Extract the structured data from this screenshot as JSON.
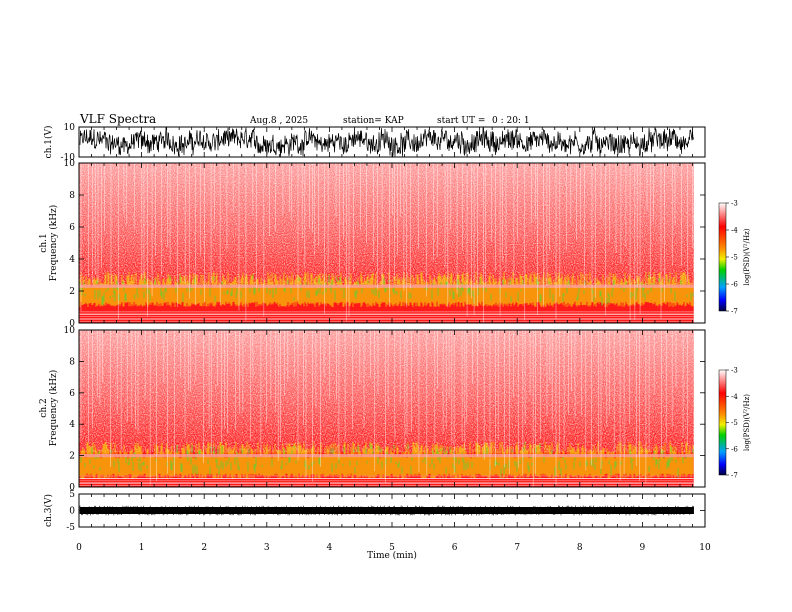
{
  "header": {
    "title": "VLF Spectra",
    "date": "Aug.8 , 2025",
    "station": "station= KAP",
    "start_label": "start  UT =",
    "start_time": "0 : 20: 1"
  },
  "chart_data": [
    {
      "type": "line",
      "name": "ch1-waveform",
      "ylabel": "ch.1(V)",
      "ylim": [
        -10,
        10
      ],
      "yticks": [
        "10",
        "-10"
      ],
      "xlim": [
        0,
        10
      ],
      "data_end_min": 9.82,
      "description_value": "broadband noise waveform, roughly -7 to 7 V"
    },
    {
      "type": "heatmap",
      "name": "ch1-spectrogram",
      "ylabel_line1": "ch.1",
      "ylabel_line2": "Frequency (kHz)",
      "ylim": [
        0,
        10
      ],
      "yticks": [
        "0",
        "2",
        "4",
        "6",
        "8",
        "10"
      ],
      "xlim": [
        0,
        10
      ],
      "colorbar": {
        "label": "log(PSD)(V²/Hz)",
        "range": [
          -7,
          -3
        ],
        "ticks": [
          "-3",
          "-4",
          "-5",
          "-6",
          "-7"
        ]
      },
      "bands_khz": [
        [
          1.0,
          3.2
        ],
        [
          2.2,
          2.4
        ]
      ]
    },
    {
      "type": "heatmap",
      "name": "ch2-spectrogram",
      "ylabel_line1": "ch.2",
      "ylabel_line2": "Frequency (kHz)",
      "ylim": [
        0,
        10
      ],
      "yticks": [
        "0",
        "2",
        "4",
        "6",
        "8",
        "10"
      ],
      "xlim": [
        0,
        10
      ],
      "colorbar": {
        "label": "log(PSD)(V²/Hz)",
        "range": [
          -7,
          -3
        ],
        "ticks": [
          "-3",
          "-4",
          "-5",
          "-6",
          "-7"
        ]
      },
      "bands_khz": [
        [
          0.5,
          2.9
        ],
        [
          1.9,
          2.1
        ]
      ]
    },
    {
      "type": "line",
      "name": "ch3-waveform",
      "ylabel": "ch.3(V)",
      "ylim": [
        -5,
        5
      ],
      "yticks": [
        "5",
        "0",
        "-5"
      ],
      "xlim": [
        0,
        10
      ],
      "data_end_min": 9.82,
      "description_value": "thick constant band near 0 V"
    }
  ],
  "x_axis": {
    "label": "Time  (min)",
    "ticks": [
      "0",
      "1",
      "2",
      "3",
      "4",
      "5",
      "6",
      "7",
      "8",
      "9",
      "10"
    ]
  },
  "colors": {
    "axes": "#000000",
    "spectrogram_bg": "#ff1a1a",
    "band_low": "#f4f400",
    "band_mid": "#3ddc3d",
    "line": "#000000"
  }
}
